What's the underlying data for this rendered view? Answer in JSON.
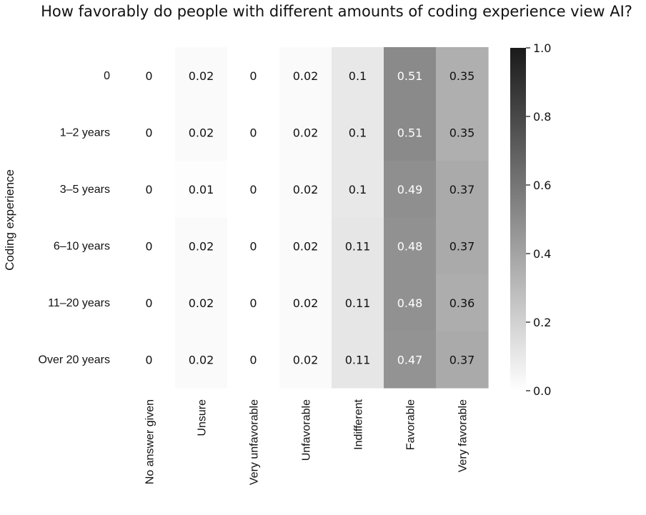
{
  "chart_data": {
    "type": "heatmap",
    "title": "How favorably do people with different amounts of coding experience view AI?",
    "ylabel": "Coding experience",
    "xlabel": "",
    "rows": [
      "0",
      "1–2 years",
      "3–5 years",
      "6–10 years",
      "11–20 years",
      "Over 20 years"
    ],
    "columns": [
      "No answer given",
      "Unsure",
      "Very unfavorable",
      "Unfavorable",
      "Indifferent",
      "Favorable",
      "Very favorable"
    ],
    "values": [
      [
        0,
        0.02,
        0,
        0.02,
        0.1,
        0.51,
        0.35
      ],
      [
        0,
        0.02,
        0,
        0.02,
        0.1,
        0.51,
        0.35
      ],
      [
        0,
        0.01,
        0,
        0.02,
        0.1,
        0.49,
        0.37
      ],
      [
        0,
        0.02,
        0,
        0.02,
        0.11,
        0.48,
        0.37
      ],
      [
        0,
        0.02,
        0,
        0.02,
        0.11,
        0.48,
        0.36
      ],
      [
        0,
        0.02,
        0,
        0.02,
        0.11,
        0.47,
        0.37
      ]
    ],
    "value_labels": [
      [
        "0",
        "0.02",
        "0",
        "0.02",
        "0.1",
        "0.51",
        "0.35"
      ],
      [
        "0",
        "0.02",
        "0",
        "0.02",
        "0.1",
        "0.51",
        "0.35"
      ],
      [
        "0",
        "0.01",
        "0",
        "0.02",
        "0.1",
        "0.49",
        "0.37"
      ],
      [
        "0",
        "0.02",
        "0",
        "0.02",
        "0.11",
        "0.48",
        "0.37"
      ],
      [
        "0",
        "0.02",
        "0",
        "0.02",
        "0.11",
        "0.48",
        "0.36"
      ],
      [
        "0",
        "0.02",
        "0",
        "0.02",
        "0.11",
        "0.47",
        "0.37"
      ]
    ],
    "colorbar": {
      "range": [
        0,
        1
      ],
      "ticks": [
        0,
        0.2,
        0.4,
        0.6,
        0.8,
        1
      ],
      "tick_labels": [
        "0.0",
        "0.2",
        "0.4",
        "0.6",
        "0.8",
        "1.0"
      ],
      "colors": [
        "#ffffff",
        "#1a1a1a"
      ]
    },
    "grid": false,
    "legend": "colorbar-right"
  }
}
